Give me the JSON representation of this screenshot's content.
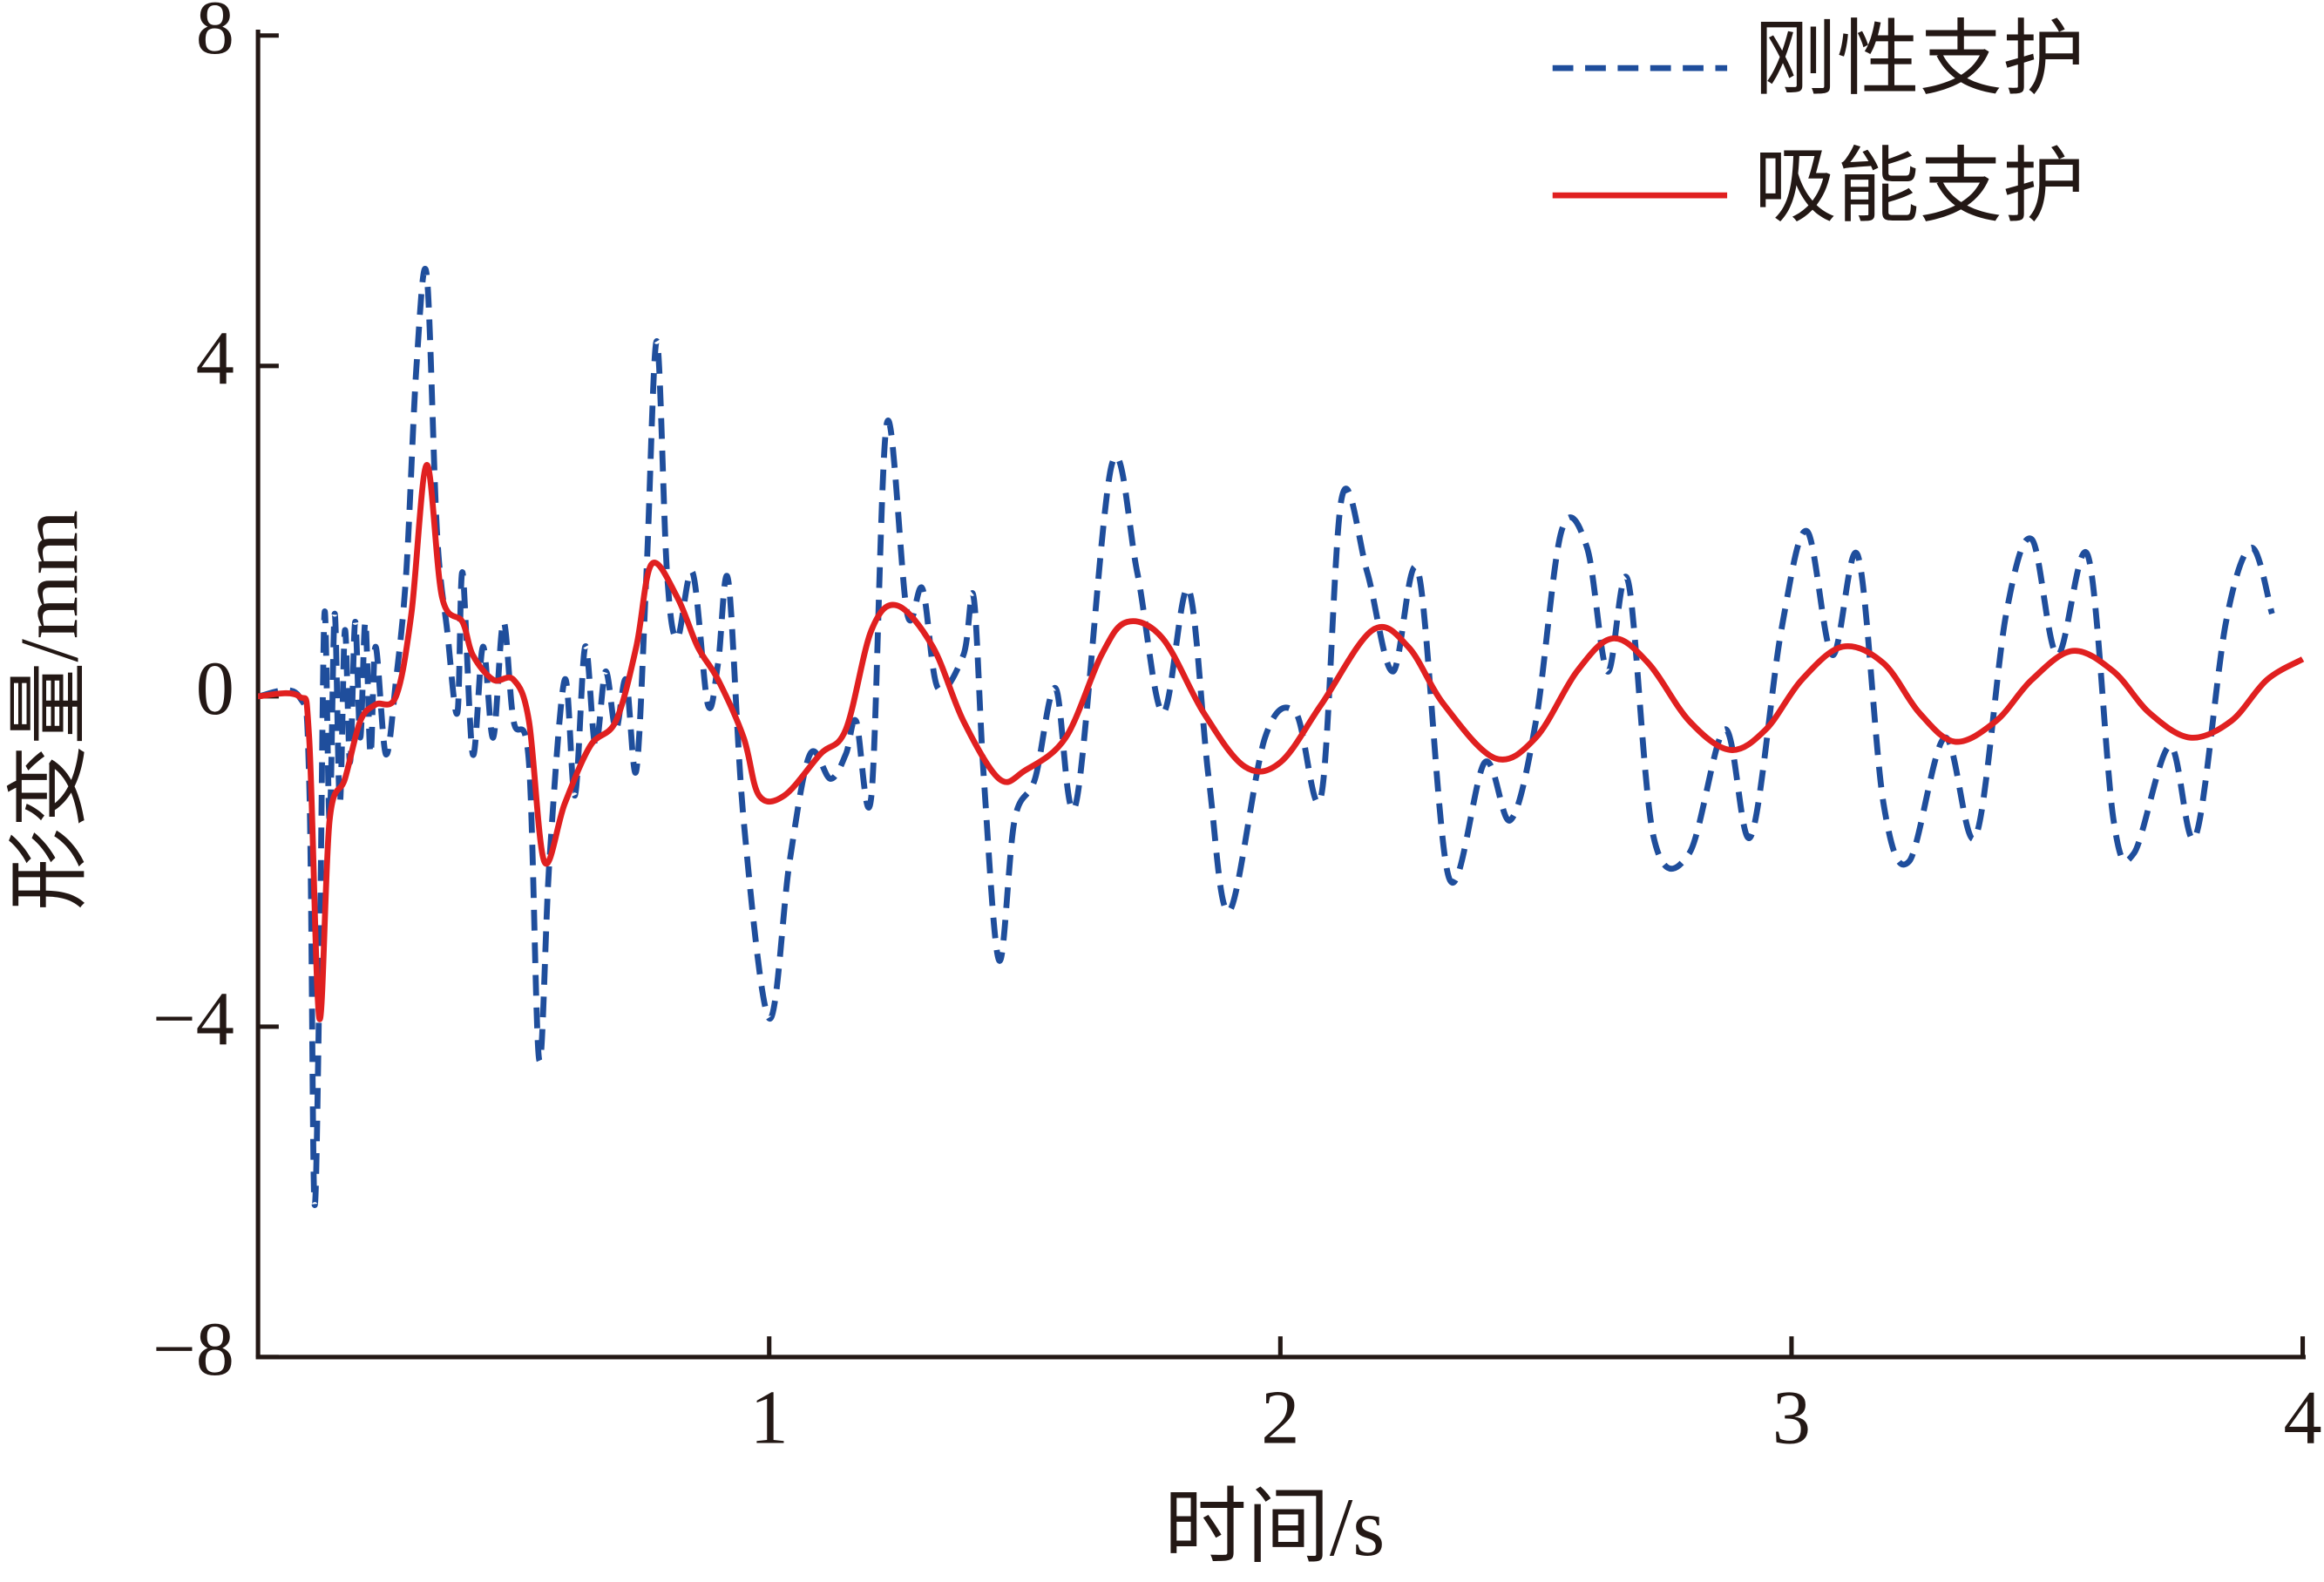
{
  "chart_data": {
    "type": "line",
    "xlabel": "时间/s",
    "ylabel": "形变量/mm",
    "xlim": [
      0,
      4
    ],
    "xticks": [
      1,
      2,
      3,
      4
    ],
    "ylim": [
      -8,
      8
    ],
    "yticks": [
      8,
      4,
      0,
      {
        "value": -4,
        "label": "−4"
      },
      {
        "value": -8,
        "label": "−8"
      }
    ],
    "legend": "upper right",
    "series": [
      {
        "name": "刚性支护",
        "color": "#1f4e9c",
        "dash": true,
        "x": [
          0,
          0.08,
          0.1,
          0.11,
          0.12,
          0.13,
          0.14,
          0.15,
          0.16,
          0.17,
          0.18,
          0.19,
          0.2,
          0.21,
          0.22,
          0.23,
          0.25,
          0.27,
          0.29,
          0.31,
          0.33,
          0.35,
          0.37,
          0.39,
          0.4,
          0.42,
          0.44,
          0.46,
          0.48,
          0.5,
          0.53,
          0.55,
          0.57,
          0.6,
          0.62,
          0.64,
          0.66,
          0.68,
          0.7,
          0.72,
          0.74,
          0.76,
          0.78,
          0.8,
          0.82,
          0.85,
          0.88,
          0.9,
          0.92,
          0.95,
          1.0,
          1.04,
          1.08,
          1.12,
          1.15,
          1.17,
          1.2,
          1.23,
          1.27,
          1.3,
          1.33,
          1.38,
          1.4,
          1.42,
          1.45,
          1.48,
          1.52,
          1.56,
          1.6,
          1.67,
          1.72,
          1.77,
          1.82,
          1.86,
          1.9,
          1.97,
          2.03,
          2.08,
          2.12,
          2.17,
          2.22,
          2.27,
          2.33,
          2.4,
          2.45,
          2.5,
          2.55,
          2.6,
          2.64,
          2.68,
          2.73,
          2.8,
          2.87,
          2.92,
          2.98,
          3.03,
          3.08,
          3.13,
          3.18,
          3.23,
          3.3,
          3.36,
          3.42,
          3.47,
          3.52,
          3.58,
          3.63,
          3.67,
          3.74,
          3.79,
          3.85,
          3.9,
          3.94
        ],
        "values": [
          0,
          0,
          -1,
          -6.1,
          -3.5,
          1.0,
          -1.5,
          1.0,
          -1.3,
          0.8,
          -0.8,
          0.9,
          -0.5,
          0.9,
          -0.7,
          0.6,
          -0.7,
          0.2,
          1.5,
          4.0,
          5.1,
          2.0,
          0.8,
          -0.2,
          1.5,
          -0.7,
          0.6,
          -0.5,
          0.9,
          -0.3,
          -0.8,
          -4.4,
          -2.0,
          0.2,
          -1.2,
          0.6,
          -0.6,
          0.3,
          -0.4,
          0.2,
          -0.9,
          1.5,
          4.3,
          1.5,
          0.7,
          1.5,
          -0.1,
          0.4,
          1.4,
          -1.5,
          -3.9,
          -2.0,
          -0.7,
          -1.0,
          -0.7,
          -0.3,
          -1.2,
          3.3,
          1.0,
          1.3,
          0.1,
          0.5,
          1.2,
          -1.0,
          -3.2,
          -1.5,
          -1.0,
          0.1,
          -1.3,
          2.8,
          1.5,
          -0.2,
          1.3,
          -1.0,
          -2.6,
          -0.5,
          -0.2,
          -1.2,
          2.4,
          1.5,
          0.3,
          1.5,
          -2.2,
          -0.8,
          -1.5,
          -0.3,
          2.0,
          1.8,
          0.3,
          1.4,
          -1.7,
          -1.9,
          -0.4,
          -1.7,
          0.8,
          2.0,
          0.5,
          1.7,
          -1.3,
          -2.0,
          -0.5,
          -1.7,
          1.0,
          1.9,
          0.5,
          1.7,
          -1.5,
          -1.9,
          -0.6,
          -1.7,
          0.9,
          1.8,
          1.0
        ]
      },
      {
        "name": "吸能支护",
        "color": "#e02020",
        "dash": false,
        "x": [
          0,
          0.08,
          0.1,
          0.12,
          0.14,
          0.17,
          0.2,
          0.23,
          0.27,
          0.3,
          0.33,
          0.36,
          0.4,
          0.42,
          0.46,
          0.5,
          0.53,
          0.56,
          0.6,
          0.65,
          0.7,
          0.74,
          0.77,
          0.82,
          0.86,
          0.9,
          0.95,
          0.98,
          1.03,
          1.1,
          1.15,
          1.2,
          1.25,
          1.32,
          1.38,
          1.45,
          1.5,
          1.58,
          1.65,
          1.7,
          1.77,
          1.85,
          1.93,
          2.0,
          2.08,
          2.18,
          2.25,
          2.32,
          2.42,
          2.5,
          2.58,
          2.65,
          2.72,
          2.8,
          2.88,
          2.95,
          3.02,
          3.1,
          3.18,
          3.25,
          3.32,
          3.4,
          3.47,
          3.55,
          3.63,
          3.7,
          3.78,
          3.86,
          3.93,
          4.0
        ],
        "values": [
          0,
          0,
          -0.5,
          -3.9,
          -1.5,
          -1.0,
          -0.3,
          -0.1,
          0,
          1.0,
          2.8,
          1.2,
          0.9,
          0.5,
          0.2,
          0.2,
          -0.3,
          -2.0,
          -1.3,
          -0.6,
          -0.3,
          0.6,
          1.6,
          1.2,
          0.6,
          0.2,
          -0.5,
          -1.2,
          -1.2,
          -0.7,
          -0.4,
          0.8,
          1.1,
          0.6,
          -0.3,
          -1.0,
          -0.9,
          -0.5,
          0.5,
          0.9,
          0.7,
          -0.2,
          -0.85,
          -0.8,
          -0.1,
          0.8,
          0.6,
          -0.1,
          -0.75,
          -0.5,
          0.3,
          0.7,
          0.4,
          -0.3,
          -0.65,
          -0.4,
          0.2,
          0.6,
          0.4,
          -0.2,
          -0.55,
          -0.3,
          0.2,
          0.55,
          0.3,
          -0.2,
          -0.5,
          -0.3,
          0.2,
          0.45
        ]
      }
    ]
  }
}
